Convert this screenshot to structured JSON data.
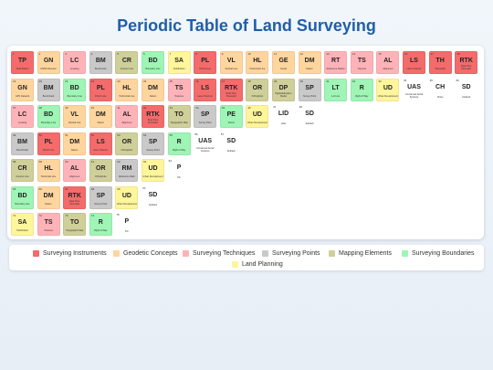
{
  "title": "Periodic Table of Land Surveying",
  "categories": {
    "instrument": {
      "label": "Surveying Instruments",
      "color": "#f46b6b"
    },
    "geodetic": {
      "label": "Geodetic Concepts",
      "color": "#ffd59e"
    },
    "technique": {
      "label": "Surveying Techniques",
      "color": "#ffb3b8"
    },
    "point": {
      "label": "Surveying Points",
      "color": "#c9c9c9"
    },
    "mapping": {
      "label": "Mapping Elements",
      "color": "#cfcf9a"
    },
    "boundary": {
      "label": "Surveying Boundaries",
      "color": "#9ef5b5"
    },
    "planning": {
      "label": "Land Planning",
      "color": "#fff59a"
    },
    "none": {
      "label": "",
      "color": "#ffffff"
    }
  },
  "legend_order": [
    "instrument",
    "geodetic",
    "technique",
    "point",
    "mapping",
    "boundary",
    "planning"
  ],
  "elements": [
    {
      "num": "1",
      "sym": "TP",
      "name": "Total Station",
      "cat": "instrument"
    },
    {
      "num": "2",
      "sym": "GN",
      "name": "GNSS Receiver",
      "cat": "geodetic"
    },
    {
      "num": "3",
      "sym": "LC",
      "name": "Leveling",
      "cat": "technique"
    },
    {
      "num": "4",
      "sym": "BM",
      "name": "Benchmark",
      "cat": "point"
    },
    {
      "num": "5",
      "sym": "CR",
      "name": "Contour Line",
      "cat": "mapping"
    },
    {
      "num": "6",
      "sym": "BD",
      "name": "Boundary Line",
      "cat": "boundary"
    },
    {
      "num": "7",
      "sym": "SA",
      "name": "Subdivision",
      "cat": "planning"
    },
    {
      "num": "8",
      "sym": "PL",
      "name": "Plumb Line",
      "cat": "instrument"
    },
    {
      "num": "9",
      "sym": "VL",
      "name": "Vertical Line",
      "cat": "geodetic"
    },
    {
      "num": "10",
      "sym": "HL",
      "name": "Horizontal Line",
      "cat": "geodetic"
    },
    {
      "num": "11",
      "sym": "GE",
      "name": "Geoid",
      "cat": "geodetic"
    },
    {
      "num": "12",
      "sym": "DM",
      "name": "Datum",
      "cat": "geodetic"
    },
    {
      "num": "13",
      "sym": "RT",
      "name": "Reference Station",
      "cat": "technique"
    },
    {
      "num": "14",
      "sym": "TS",
      "name": "Traverse",
      "cat": "technique"
    },
    {
      "num": "15",
      "sym": "AL",
      "name": "Alignment",
      "cat": "technique"
    },
    {
      "num": "16",
      "sym": "LS",
      "name": "Laser Scanner",
      "cat": "instrument"
    },
    {
      "num": "17",
      "sym": "TH",
      "name": "Theodolite",
      "cat": "instrument"
    },
    {
      "num": "18",
      "sym": "RTK",
      "name": "Real-Time Kinematic",
      "cat": "instrument"
    },
    {
      "num": "19",
      "sym": "GN",
      "name": "GPS Network",
      "cat": "geodetic"
    },
    {
      "num": "20",
      "sym": "BM",
      "name": "Benchmark",
      "cat": "point"
    },
    {
      "num": "21",
      "sym": "BD",
      "name": "Boundary Line",
      "cat": "boundary"
    },
    {
      "num": "22",
      "sym": "PL",
      "name": "Plumb Line",
      "cat": "instrument"
    },
    {
      "num": "23",
      "sym": "HL",
      "name": "Horizontal Line",
      "cat": "geodetic"
    },
    {
      "num": "24",
      "sym": "DM",
      "name": "Datum",
      "cat": "geodetic"
    },
    {
      "num": "25",
      "sym": "TS",
      "name": "Traverse",
      "cat": "technique"
    },
    {
      "num": "26",
      "sym": "LS",
      "name": "Laser Scanner",
      "cat": "instrument"
    },
    {
      "num": "27",
      "sym": "RTK",
      "name": "Real-Time Kinematic",
      "cat": "instrument"
    },
    {
      "num": "28",
      "sym": "OR",
      "name": "Orthophoto",
      "cat": "mapping"
    },
    {
      "num": "29",
      "sym": "DP",
      "name": "Digital Elevation Model",
      "cat": "mapping"
    },
    {
      "num": "30",
      "sym": "SP",
      "name": "Survey Point",
      "cat": "point"
    },
    {
      "num": "31",
      "sym": "LT",
      "name": "Lot Line",
      "cat": "boundary"
    },
    {
      "num": "32",
      "sym": "R",
      "name": "Right of Way",
      "cat": "boundary"
    },
    {
      "num": "33",
      "sym": "UD",
      "name": "Urban Development",
      "cat": "planning"
    },
    {
      "num": "34",
      "sym": "UAS",
      "name": "Unmanned Aerial Systems",
      "cat": "none"
    },
    {
      "num": "35",
      "sym": "CH",
      "name": "Chain",
      "cat": "none"
    },
    {
      "num": "36",
      "sym": "SD",
      "name": "Setback",
      "cat": "none"
    },
    {
      "num": "37",
      "sym": "LC",
      "name": "Leveling",
      "cat": "technique"
    },
    {
      "num": "38",
      "sym": "BD",
      "name": "Boundary Line",
      "cat": "boundary"
    },
    {
      "num": "39",
      "sym": "VL",
      "name": "Vertical Line",
      "cat": "geodetic"
    },
    {
      "num": "40",
      "sym": "DM",
      "name": "Datum",
      "cat": "geodetic"
    },
    {
      "num": "41",
      "sym": "AL",
      "name": "Alignment",
      "cat": "technique"
    },
    {
      "num": "42",
      "sym": "RTK",
      "name": "Real-Time Kinematic",
      "cat": "instrument"
    },
    {
      "num": "43",
      "sym": "TO",
      "name": "Topographic Map",
      "cat": "mapping"
    },
    {
      "num": "44",
      "sym": "SP",
      "name": "Survey Point",
      "cat": "point"
    },
    {
      "num": "45",
      "sym": "PE",
      "name": "Parcel",
      "cat": "boundary"
    },
    {
      "num": "46",
      "sym": "UD",
      "name": "Urban Development",
      "cat": "planning"
    },
    {
      "num": "47",
      "sym": "LID",
      "name": "Lidar",
      "cat": "none"
    },
    {
      "num": "48",
      "sym": "SD",
      "name": "Setback",
      "cat": "none"
    },
    {
      "num": "49",
      "sym": "BM",
      "name": "Benchmark",
      "cat": "point"
    },
    {
      "num": "50",
      "sym": "PL",
      "name": "Plumb Line",
      "cat": "instrument"
    },
    {
      "num": "51",
      "sym": "DM",
      "name": "Datum",
      "cat": "geodetic"
    },
    {
      "num": "52",
      "sym": "LS",
      "name": "Laser Scanner",
      "cat": "instrument"
    },
    {
      "num": "53",
      "sym": "OR",
      "name": "Orthophoto",
      "cat": "mapping"
    },
    {
      "num": "54",
      "sym": "SP",
      "name": "Survey Point",
      "cat": "point"
    },
    {
      "num": "55",
      "sym": "R",
      "name": "Right of Way",
      "cat": "boundary"
    },
    {
      "num": "56",
      "sym": "UAS",
      "name": "Unmanned Aerial Systems",
      "cat": "none"
    },
    {
      "num": "57",
      "sym": "SD",
      "name": "Setback",
      "cat": "none"
    },
    {
      "num": "58",
      "sym": "CR",
      "name": "Contour Line",
      "cat": "mapping"
    },
    {
      "num": "59",
      "sym": "HL",
      "name": "Horizontal Line",
      "cat": "geodetic"
    },
    {
      "num": "60",
      "sym": "AL",
      "name": "Alignment",
      "cat": "technique"
    },
    {
      "num": "61",
      "sym": "OR",
      "name": "Orthophoto",
      "cat": "mapping"
    },
    {
      "num": "62",
      "sym": "RM",
      "name": "Reference Mark",
      "cat": "point"
    },
    {
      "num": "63",
      "sym": "UD",
      "name": "Urban Development",
      "cat": "planning"
    },
    {
      "num": "64",
      "sym": "P",
      "name": "Pin",
      "cat": "none"
    },
    {
      "num": "65",
      "sym": "BD",
      "name": "Boundary Line",
      "cat": "boundary"
    },
    {
      "num": "66",
      "sym": "DM",
      "name": "Datum",
      "cat": "geodetic"
    },
    {
      "num": "67",
      "sym": "RTK",
      "name": "Real-Time Kinematic",
      "cat": "instrument"
    },
    {
      "num": "68",
      "sym": "SP",
      "name": "Survey Point",
      "cat": "point"
    },
    {
      "num": "69",
      "sym": "UD",
      "name": "Urban Development",
      "cat": "planning"
    },
    {
      "num": "70",
      "sym": "SD",
      "name": "Setback",
      "cat": "none"
    },
    {
      "num": "71",
      "sym": "SA",
      "name": "Subdivision",
      "cat": "planning"
    },
    {
      "num": "72",
      "sym": "TS",
      "name": "Traverse",
      "cat": "technique"
    },
    {
      "num": "73",
      "sym": "TO",
      "name": "Topographic Map",
      "cat": "mapping"
    },
    {
      "num": "74",
      "sym": "R",
      "name": "Right of Way",
      "cat": "boundary"
    },
    {
      "num": "75",
      "sym": "P",
      "name": "Pin",
      "cat": "none"
    }
  ]
}
